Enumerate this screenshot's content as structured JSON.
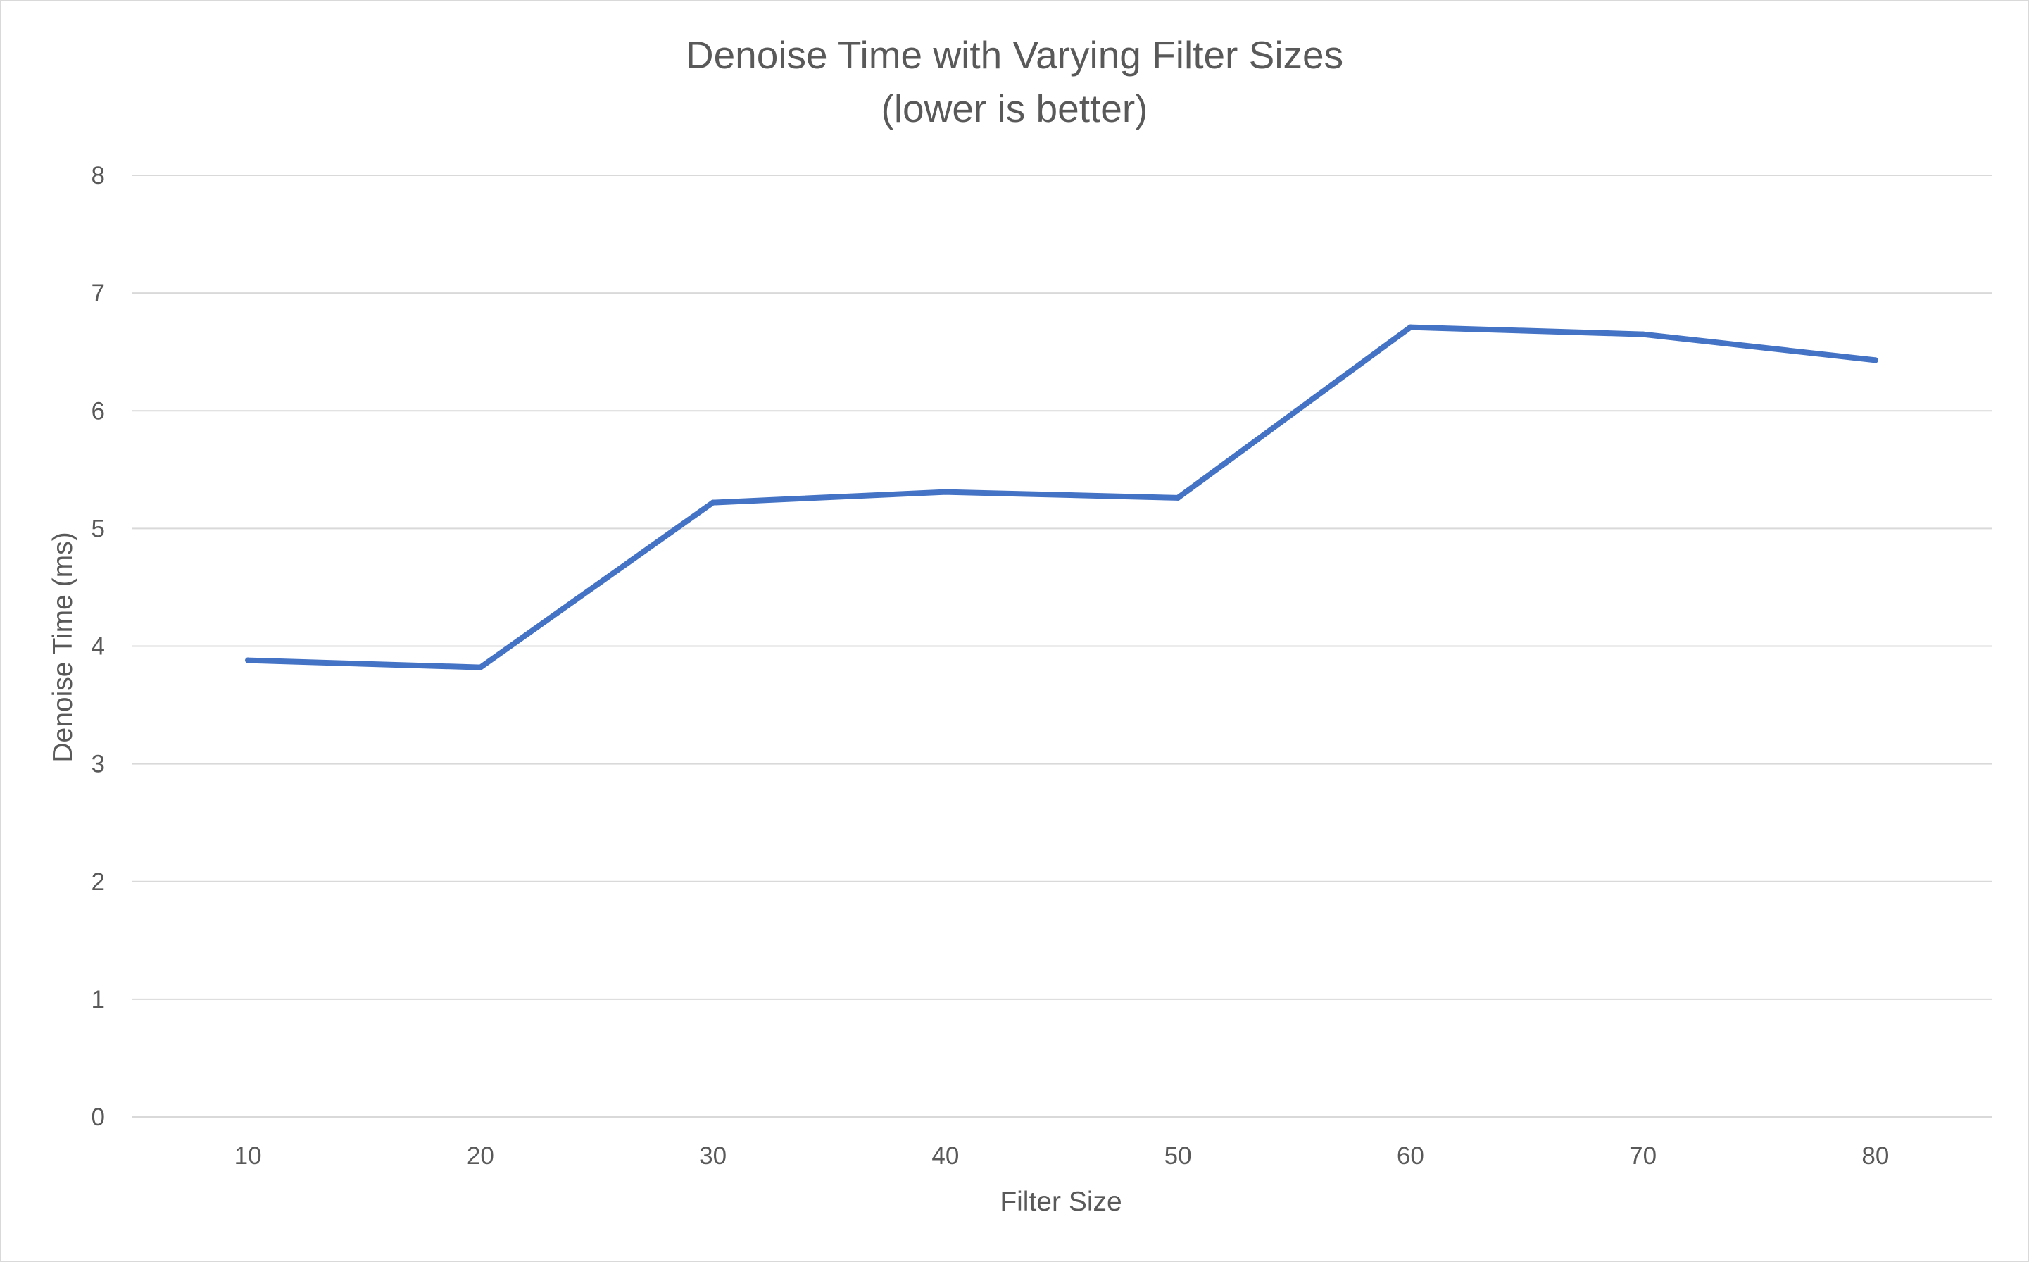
{
  "chart_data": {
    "type": "line",
    "title": "Denoise Time with Varying Filter Sizes",
    "subtitle": "(lower is better)",
    "xlabel": "Filter Size",
    "ylabel": "Denoise Time (ms)",
    "categories": [
      "10",
      "20",
      "30",
      "40",
      "50",
      "60",
      "70",
      "80"
    ],
    "series": [
      {
        "name": "",
        "color": "#4472c4",
        "values": [
          3.88,
          3.82,
          5.22,
          5.31,
          5.26,
          6.71,
          6.65,
          6.43
        ]
      }
    ],
    "ylim": [
      0,
      8
    ],
    "yticks": [
      0,
      1,
      2,
      3,
      4,
      5,
      6,
      7,
      8
    ],
    "grid": true,
    "legend": "none"
  }
}
